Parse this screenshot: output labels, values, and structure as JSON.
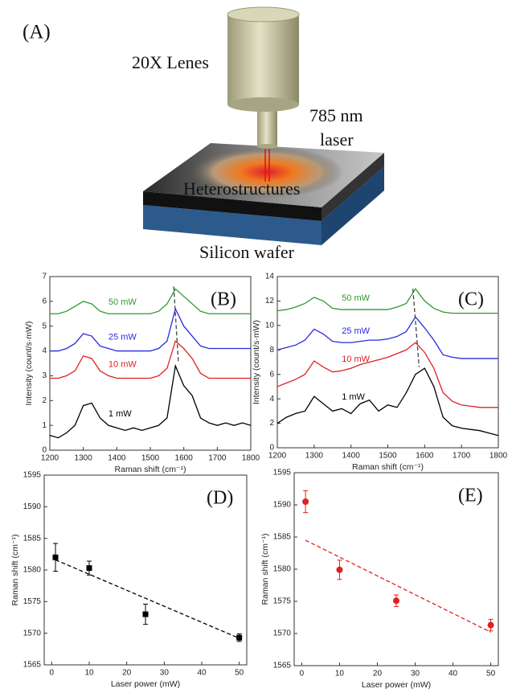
{
  "diagram": {
    "label": "(A)",
    "lens": "20X Lenes",
    "laser_line1": "785 nm",
    "laser_line2": "laser",
    "sample": "Heterostructures",
    "substrate": "Silicon wafer"
  },
  "chart_data": [
    {
      "type": "line",
      "label": "(B)",
      "xlabel": "Raman shift (cm⁻¹)",
      "ylabel": "Intensity (count/s·mW)",
      "xlim": [
        1200,
        1800
      ],
      "ylim": [
        0,
        7
      ],
      "xticks": [
        1200,
        1300,
        1400,
        1500,
        1600,
        1700,
        1800
      ],
      "yticks": [
        0,
        1,
        2,
        3,
        4,
        5,
        6,
        7
      ],
      "x": [
        1200,
        1225,
        1250,
        1275,
        1300,
        1325,
        1350,
        1375,
        1400,
        1425,
        1450,
        1475,
        1500,
        1525,
        1550,
        1575,
        1600,
        1625,
        1650,
        1675,
        1700,
        1725,
        1750,
        1775,
        1800
      ],
      "series": [
        {
          "name": "1 mW",
          "color": "#000000",
          "values": [
            0.6,
            0.5,
            0.7,
            1.0,
            1.8,
            1.9,
            1.3,
            1.0,
            0.9,
            0.8,
            0.9,
            0.8,
            0.9,
            1.0,
            1.3,
            3.4,
            2.6,
            2.2,
            1.3,
            1.1,
            1.0,
            1.1,
            1.0,
            1.1,
            1.0
          ]
        },
        {
          "name": "10 mW",
          "color": "#e02020",
          "values": [
            2.9,
            2.9,
            3.0,
            3.2,
            3.8,
            3.7,
            3.2,
            3.0,
            2.9,
            2.9,
            2.9,
            2.9,
            2.9,
            3.0,
            3.3,
            4.4,
            4.1,
            3.7,
            3.1,
            2.9,
            2.9,
            2.9,
            2.9,
            2.9,
            2.9
          ]
        },
        {
          "name": "25 mW",
          "color": "#2a2ae0",
          "values": [
            4.0,
            4.0,
            4.1,
            4.3,
            4.7,
            4.6,
            4.2,
            4.1,
            4.0,
            4.0,
            4.0,
            4.0,
            4.0,
            4.1,
            4.4,
            5.7,
            5.0,
            4.6,
            4.2,
            4.1,
            4.1,
            4.1,
            4.1,
            4.1,
            4.1
          ]
        },
        {
          "name": "50 mW",
          "color": "#2e9a2e",
          "values": [
            5.5,
            5.5,
            5.6,
            5.8,
            6.0,
            5.9,
            5.6,
            5.5,
            5.5,
            5.5,
            5.5,
            5.5,
            5.5,
            5.6,
            5.9,
            6.5,
            6.2,
            5.9,
            5.6,
            5.5,
            5.5,
            5.5,
            5.5,
            5.5,
            5.5
          ]
        }
      ],
      "guide": {
        "x": [
          1570,
          1584
        ],
        "y": [
          6.6,
          3.5
        ]
      }
    },
    {
      "type": "line",
      "label": "(C)",
      "xlabel": "Raman shift (cm⁻¹)",
      "ylabel": "Intensity (count/s·mW)",
      "xlim": [
        1200,
        1800
      ],
      "ylim": [
        0,
        14
      ],
      "xticks": [
        1200,
        1300,
        1400,
        1500,
        1600,
        1700,
        1800
      ],
      "yticks": [
        0,
        2,
        4,
        6,
        8,
        10,
        12,
        14
      ],
      "x": [
        1200,
        1225,
        1250,
        1275,
        1300,
        1325,
        1350,
        1375,
        1400,
        1425,
        1450,
        1475,
        1500,
        1525,
        1550,
        1575,
        1600,
        1625,
        1650,
        1675,
        1700,
        1725,
        1750,
        1775,
        1800
      ],
      "series": [
        {
          "name": "1 mW",
          "color": "#000000",
          "values": [
            2.0,
            2.5,
            2.8,
            3.0,
            4.2,
            3.6,
            3.0,
            3.2,
            2.8,
            3.6,
            3.9,
            3.0,
            3.5,
            3.3,
            4.5,
            6.0,
            6.5,
            5.0,
            2.5,
            1.8,
            1.6,
            1.5,
            1.4,
            1.2,
            1.0
          ]
        },
        {
          "name": "10 mW",
          "color": "#e02020",
          "values": [
            5.0,
            5.3,
            5.6,
            6.0,
            7.1,
            6.6,
            6.2,
            6.3,
            6.5,
            6.8,
            7.0,
            7.2,
            7.4,
            7.7,
            8.0,
            8.6,
            7.8,
            6.5,
            4.5,
            3.8,
            3.5,
            3.4,
            3.3,
            3.3,
            3.3
          ]
        },
        {
          "name": "25 mW",
          "color": "#2a2ae0",
          "values": [
            8.0,
            8.2,
            8.4,
            8.8,
            9.7,
            9.3,
            8.7,
            8.6,
            8.6,
            8.7,
            8.8,
            8.8,
            8.9,
            9.1,
            9.5,
            10.7,
            9.8,
            8.8,
            7.6,
            7.4,
            7.3,
            7.3,
            7.3,
            7.3,
            7.3
          ]
        },
        {
          "name": "50 mW",
          "color": "#2e9a2e",
          "values": [
            11.2,
            11.3,
            11.5,
            11.8,
            12.3,
            12.0,
            11.4,
            11.3,
            11.3,
            11.3,
            11.3,
            11.3,
            11.3,
            11.5,
            11.8,
            13.0,
            12.0,
            11.4,
            11.1,
            11.0,
            11.0,
            11.0,
            11.0,
            11.0,
            11.0
          ]
        }
      ],
      "guide": {
        "x": [
          1568,
          1585
        ],
        "y": [
          13.0,
          6.6
        ]
      }
    },
    {
      "type": "scatter",
      "label": "(D)",
      "xlabel": "Laser power (mW)",
      "ylabel": "Raman shift (cm⁻¹)",
      "color": "#000000",
      "marker": "square",
      "xlim": [
        -2,
        52
      ],
      "ylim": [
        1565,
        1595
      ],
      "xticks": [
        0,
        10,
        20,
        30,
        40,
        50
      ],
      "yticks": [
        1565,
        1570,
        1575,
        1580,
        1585,
        1590,
        1595
      ],
      "x": [
        1,
        10,
        25,
        50
      ],
      "values": [
        1582,
        1580.3,
        1573,
        1569.3
      ],
      "errors": [
        2.2,
        1.1,
        1.6,
        0.6
      ],
      "fit": {
        "x": [
          1,
          50
        ],
        "y": [
          1581.6,
          1569.2
        ]
      }
    },
    {
      "type": "scatter",
      "label": "(E)",
      "xlabel": "Laser power (mW)",
      "ylabel": "Raman shift (cm⁻¹)",
      "color": "#e02020",
      "marker": "circle",
      "xlim": [
        -2,
        52
      ],
      "ylim": [
        1565,
        1595
      ],
      "xticks": [
        0,
        10,
        20,
        30,
        40,
        50
      ],
      "yticks": [
        1565,
        1570,
        1575,
        1580,
        1585,
        1590,
        1595
      ],
      "x": [
        1,
        10,
        25,
        50
      ],
      "values": [
        1590.5,
        1579.9,
        1575.1,
        1571.3
      ],
      "errors": [
        1.7,
        1.5,
        0.9,
        0.9
      ],
      "fit": {
        "x": [
          1,
          50
        ],
        "y": [
          1584.5,
          1570.2
        ]
      }
    }
  ]
}
